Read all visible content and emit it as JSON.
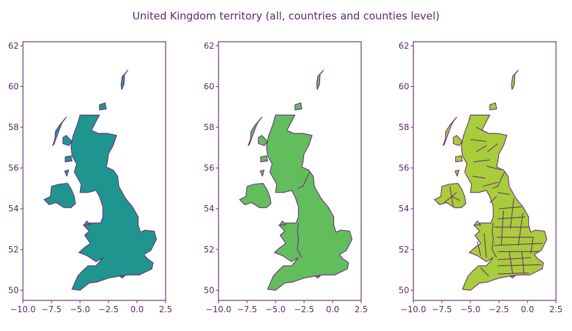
{
  "title": "United Kingdom territory (all, countries and counties level)",
  "colors": {
    "text": "#5b2a66",
    "outline": "#6b2f78",
    "panel_fills": [
      "#1f9590",
      "#62bd5d",
      "#a8cc3a"
    ]
  },
  "chart_data": {
    "type": "map",
    "region": "United Kingdom",
    "xlim": [
      -10.0,
      2.5
    ],
    "ylim": [
      49.5,
      62.2
    ],
    "xticks": [
      "−10.0",
      "−7.5",
      "−5.0",
      "−2.5",
      "0.0",
      "2.5"
    ],
    "yticks": [
      "50",
      "52",
      "54",
      "56",
      "58",
      "60",
      "62"
    ],
    "panels": [
      {
        "level": "all",
        "fill": "#1f9590"
      },
      {
        "level": "countries",
        "fill": "#62bd5d"
      },
      {
        "level": "counties",
        "fill": "#a8cc3a"
      }
    ]
  }
}
